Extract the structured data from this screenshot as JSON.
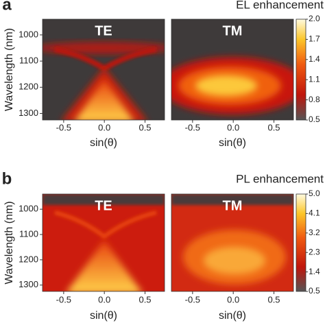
{
  "chart_data": [
    {
      "type": "heatmap",
      "panel_label": "a",
      "title": "EL enhancement",
      "ylabel": "Wavelength (nm)",
      "xlabel": "sin(θ)",
      "subplots": [
        "TE",
        "TM"
      ],
      "ylim": [
        940,
        1325
      ],
      "yticks": [
        1000,
        1100,
        1200,
        1300
      ],
      "xlim": [
        -0.76,
        0.74
      ],
      "xticks": [
        -0.5,
        {
          "value": 0,
          "label": "0.0"
        },
        0.5
      ],
      "colorbar": {
        "lim": [
          0.5,
          2.0
        ],
        "ticks": [
          {
            "value": 2.0,
            "label": "2.0"
          },
          1.7,
          1.4,
          1.1,
          0.8,
          0.5
        ]
      }
    },
    {
      "type": "heatmap",
      "panel_label": "b",
      "title": "PL enhancement",
      "ylabel": "Wavelength (nm)",
      "xlabel": "sin(θ)",
      "subplots": [
        "TE",
        "TM"
      ],
      "ylim": [
        940,
        1325
      ],
      "yticks": [
        1000,
        1100,
        1200,
        1300
      ],
      "xlim": [
        -0.76,
        0.74
      ],
      "xticks": [
        -0.5,
        {
          "value": 0,
          "label": "0.0"
        },
        0.5
      ],
      "colorbar": {
        "lim": [
          0.5,
          5.0
        ],
        "ticks": [
          {
            "value": 5.0,
            "label": "5.0"
          },
          4.1,
          3.2,
          2.3,
          1.4,
          0.5
        ]
      }
    }
  ]
}
